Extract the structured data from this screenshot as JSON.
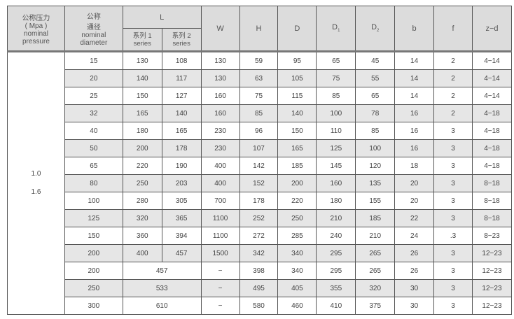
{
  "headers": {
    "pressure": [
      "公称压力",
      "( Mpa )",
      "nominal",
      "pressure"
    ],
    "diameter": [
      "公称",
      "通径",
      "nominal",
      "diameter"
    ],
    "L": "L",
    "series1": [
      "系列 1",
      "series"
    ],
    "series2": [
      "系列 2",
      "series"
    ],
    "W": "W",
    "H": "H",
    "D": "D",
    "D1": "D",
    "D1_sub": "1",
    "D2": "D",
    "D2_sub": "2",
    "b": "b",
    "f": "f",
    "zd": "z−d"
  },
  "pressure_values": [
    "1.0",
    "1.6"
  ],
  "rows": [
    [
      "15",
      "130",
      "108",
      "130",
      "59",
      "95",
      "65",
      "45",
      "14",
      "2",
      "4−14"
    ],
    [
      "20",
      "140",
      "117",
      "130",
      "63",
      "105",
      "75",
      "55",
      "14",
      "2",
      "4−14"
    ],
    [
      "25",
      "150",
      "127",
      "160",
      "75",
      "115",
      "85",
      "65",
      "14",
      "2",
      "4−14"
    ],
    [
      "32",
      "165",
      "140",
      "160",
      "85",
      "140",
      "100",
      "78",
      "16",
      "2",
      "4−18"
    ],
    [
      "40",
      "180",
      "165",
      "230",
      "96",
      "150",
      "110",
      "85",
      "16",
      "3",
      "4−18"
    ],
    [
      "50",
      "200",
      "178",
      "230",
      "107",
      "165",
      "125",
      "100",
      "16",
      "3",
      "4−18"
    ],
    [
      "65",
      "220",
      "190",
      "400",
      "142",
      "185",
      "145",
      "120",
      "18",
      "3",
      "4−18"
    ],
    [
      "80",
      "250",
      "203",
      "400",
      "152",
      "200",
      "160",
      "135",
      "20",
      "3",
      "8−18"
    ],
    [
      "100",
      "280",
      "305",
      "700",
      "178",
      "220",
      "180",
      "155",
      "20",
      "3",
      "8−18"
    ],
    [
      "125",
      "320",
      "365",
      "1100",
      "252",
      "250",
      "210",
      "185",
      "22",
      "3",
      "8−18"
    ],
    [
      "150",
      "360",
      "394",
      "1100",
      "272",
      "285",
      "240",
      "210",
      "24",
      ".3",
      "8−23"
    ],
    [
      "200",
      "400",
      "457",
      "1500",
      "342",
      "340",
      "295",
      "265",
      "26",
      "3",
      "12−23"
    ]
  ],
  "merged_rows": [
    [
      "200",
      "457",
      "−",
      "398",
      "340",
      "295",
      "265",
      "26",
      "3",
      "12−23"
    ],
    [
      "250",
      "533",
      "−",
      "495",
      "405",
      "355",
      "320",
      "30",
      "3",
      "12−23"
    ],
    [
      "300",
      "610",
      "−",
      "580",
      "460",
      "410",
      "375",
      "30",
      "3",
      "12−23"
    ]
  ]
}
